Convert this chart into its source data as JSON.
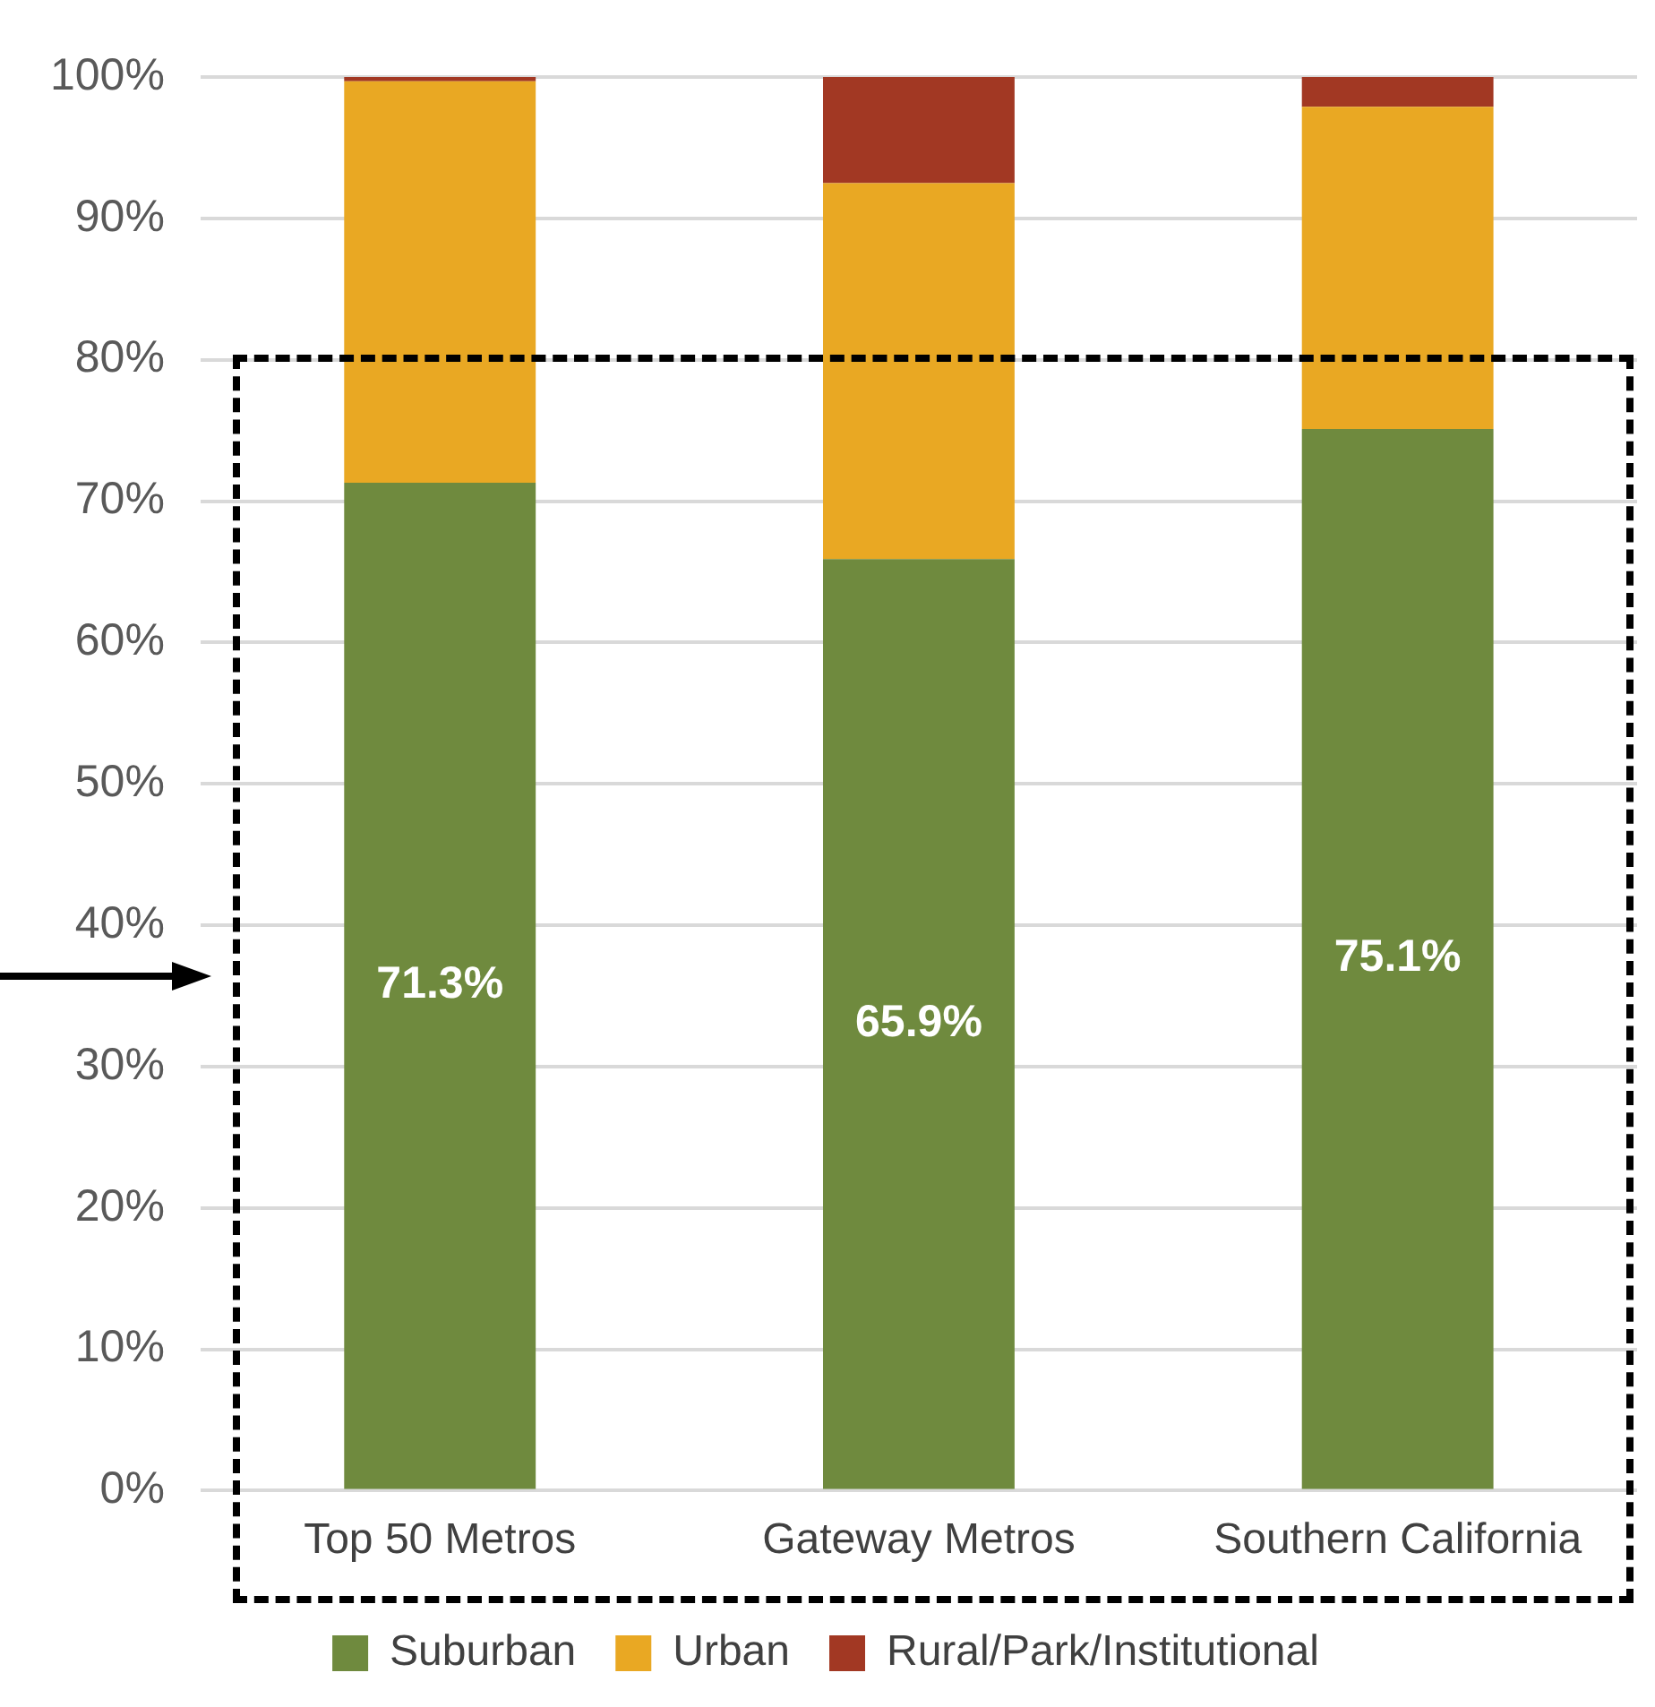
{
  "chart_data": {
    "type": "bar",
    "stacked": true,
    "categories": [
      "Top 50 Metros",
      "Gateway Metros",
      "Southern California"
    ],
    "series": [
      {
        "name": "Suburban",
        "color": "#6f8a3e",
        "values": [
          71.3,
          65.9,
          75.1
        ],
        "value_labels": [
          "71.3%",
          "65.9%",
          "75.1%"
        ]
      },
      {
        "name": "Urban",
        "color": "#e9a823",
        "values": [
          28.4,
          26.6,
          22.8
        ]
      },
      {
        "name": "Rural/Park/Institutional",
        "color": "#a23823",
        "values": [
          0.3,
          7.5,
          2.1
        ]
      }
    ],
    "ylim": [
      0,
      100
    ],
    "yticks": [
      {
        "value": 0,
        "label": "0%"
      },
      {
        "value": 10,
        "label": "10%"
      },
      {
        "value": 20,
        "label": "20%"
      },
      {
        "value": 30,
        "label": "30%"
      },
      {
        "value": 40,
        "label": "40%"
      },
      {
        "value": 50,
        "label": "50%"
      },
      {
        "value": 60,
        "label": "60%"
      },
      {
        "value": 70,
        "label": "70%"
      },
      {
        "value": 80,
        "label": "80%"
      },
      {
        "value": 90,
        "label": "90%"
      },
      {
        "value": 100,
        "label": "100%"
      }
    ],
    "grid": "y",
    "legend": "bottom"
  }
}
